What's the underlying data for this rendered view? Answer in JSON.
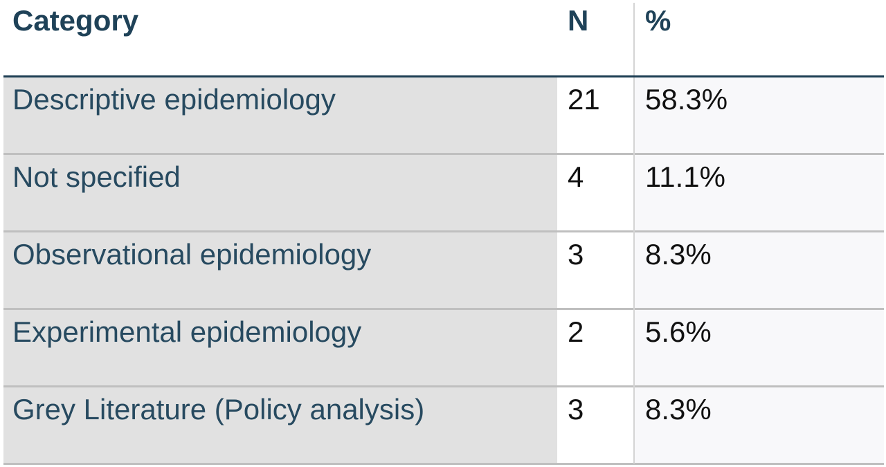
{
  "table": {
    "headers": {
      "category": "Category",
      "n": "N",
      "percent": "%"
    },
    "rows": [
      {
        "category": "Descriptive epidemiology",
        "n": "21",
        "percent": "58.3%"
      },
      {
        "category": "Not specified",
        "n": "4",
        "percent": "11.1%"
      },
      {
        "category": "Observational epidemiology",
        "n": "3",
        "percent": "8.3%"
      },
      {
        "category": "Experimental epidemiology",
        "n": "2",
        "percent": "5.6%"
      },
      {
        "category": "Grey Literature (Policy analysis)",
        "n": "3",
        "percent": "8.3%"
      }
    ]
  },
  "colors": {
    "header_text": "#1f4258",
    "category_text": "#274a60",
    "number_text": "#111111",
    "category_fill": "#e1e1e1",
    "percent_fill": "#f8f8fa",
    "header_rule": "#1c3d52",
    "row_rule": "#bfbfbf"
  }
}
